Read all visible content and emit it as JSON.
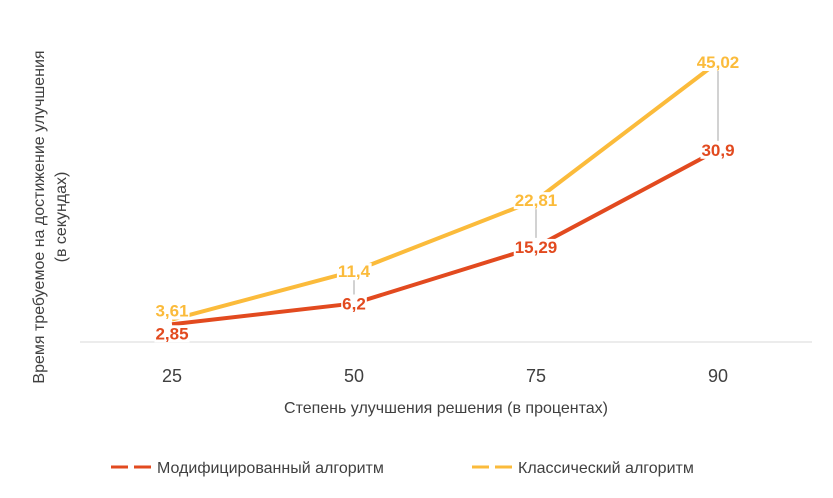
{
  "chart_data": {
    "type": "line",
    "categories": [
      "25",
      "50",
      "75",
      "90"
    ],
    "series": [
      {
        "name": "Модифицированный алгоритм",
        "values": [
          2.85,
          6.2,
          15.29,
          30.9
        ],
        "labels": [
          "2,85",
          "6,2",
          "15,29",
          "30,9"
        ],
        "color": "#e24a1f"
      },
      {
        "name": "Классический алгоритм",
        "values": [
          3.61,
          11.4,
          22.81,
          45.02
        ],
        "labels": [
          "3,61",
          "11,4",
          "22,81",
          "45,02"
        ],
        "color": "#fbbb3b"
      }
    ],
    "xlabel": "Степень улучшения решения (в процентах)",
    "ylabel": "Время требуемое на достижение улучшения (в секундах)",
    "ylabel_lines": [
      "Время требуемое на достижение улучшения",
      "(в секундах)"
    ],
    "ylim": [
      0,
      48
    ],
    "grid": false,
    "legend_position": "bottom",
    "colors": {
      "axis": "#d9d9d9",
      "text": "#404040",
      "drop_line": "#a6a6a6"
    }
  }
}
